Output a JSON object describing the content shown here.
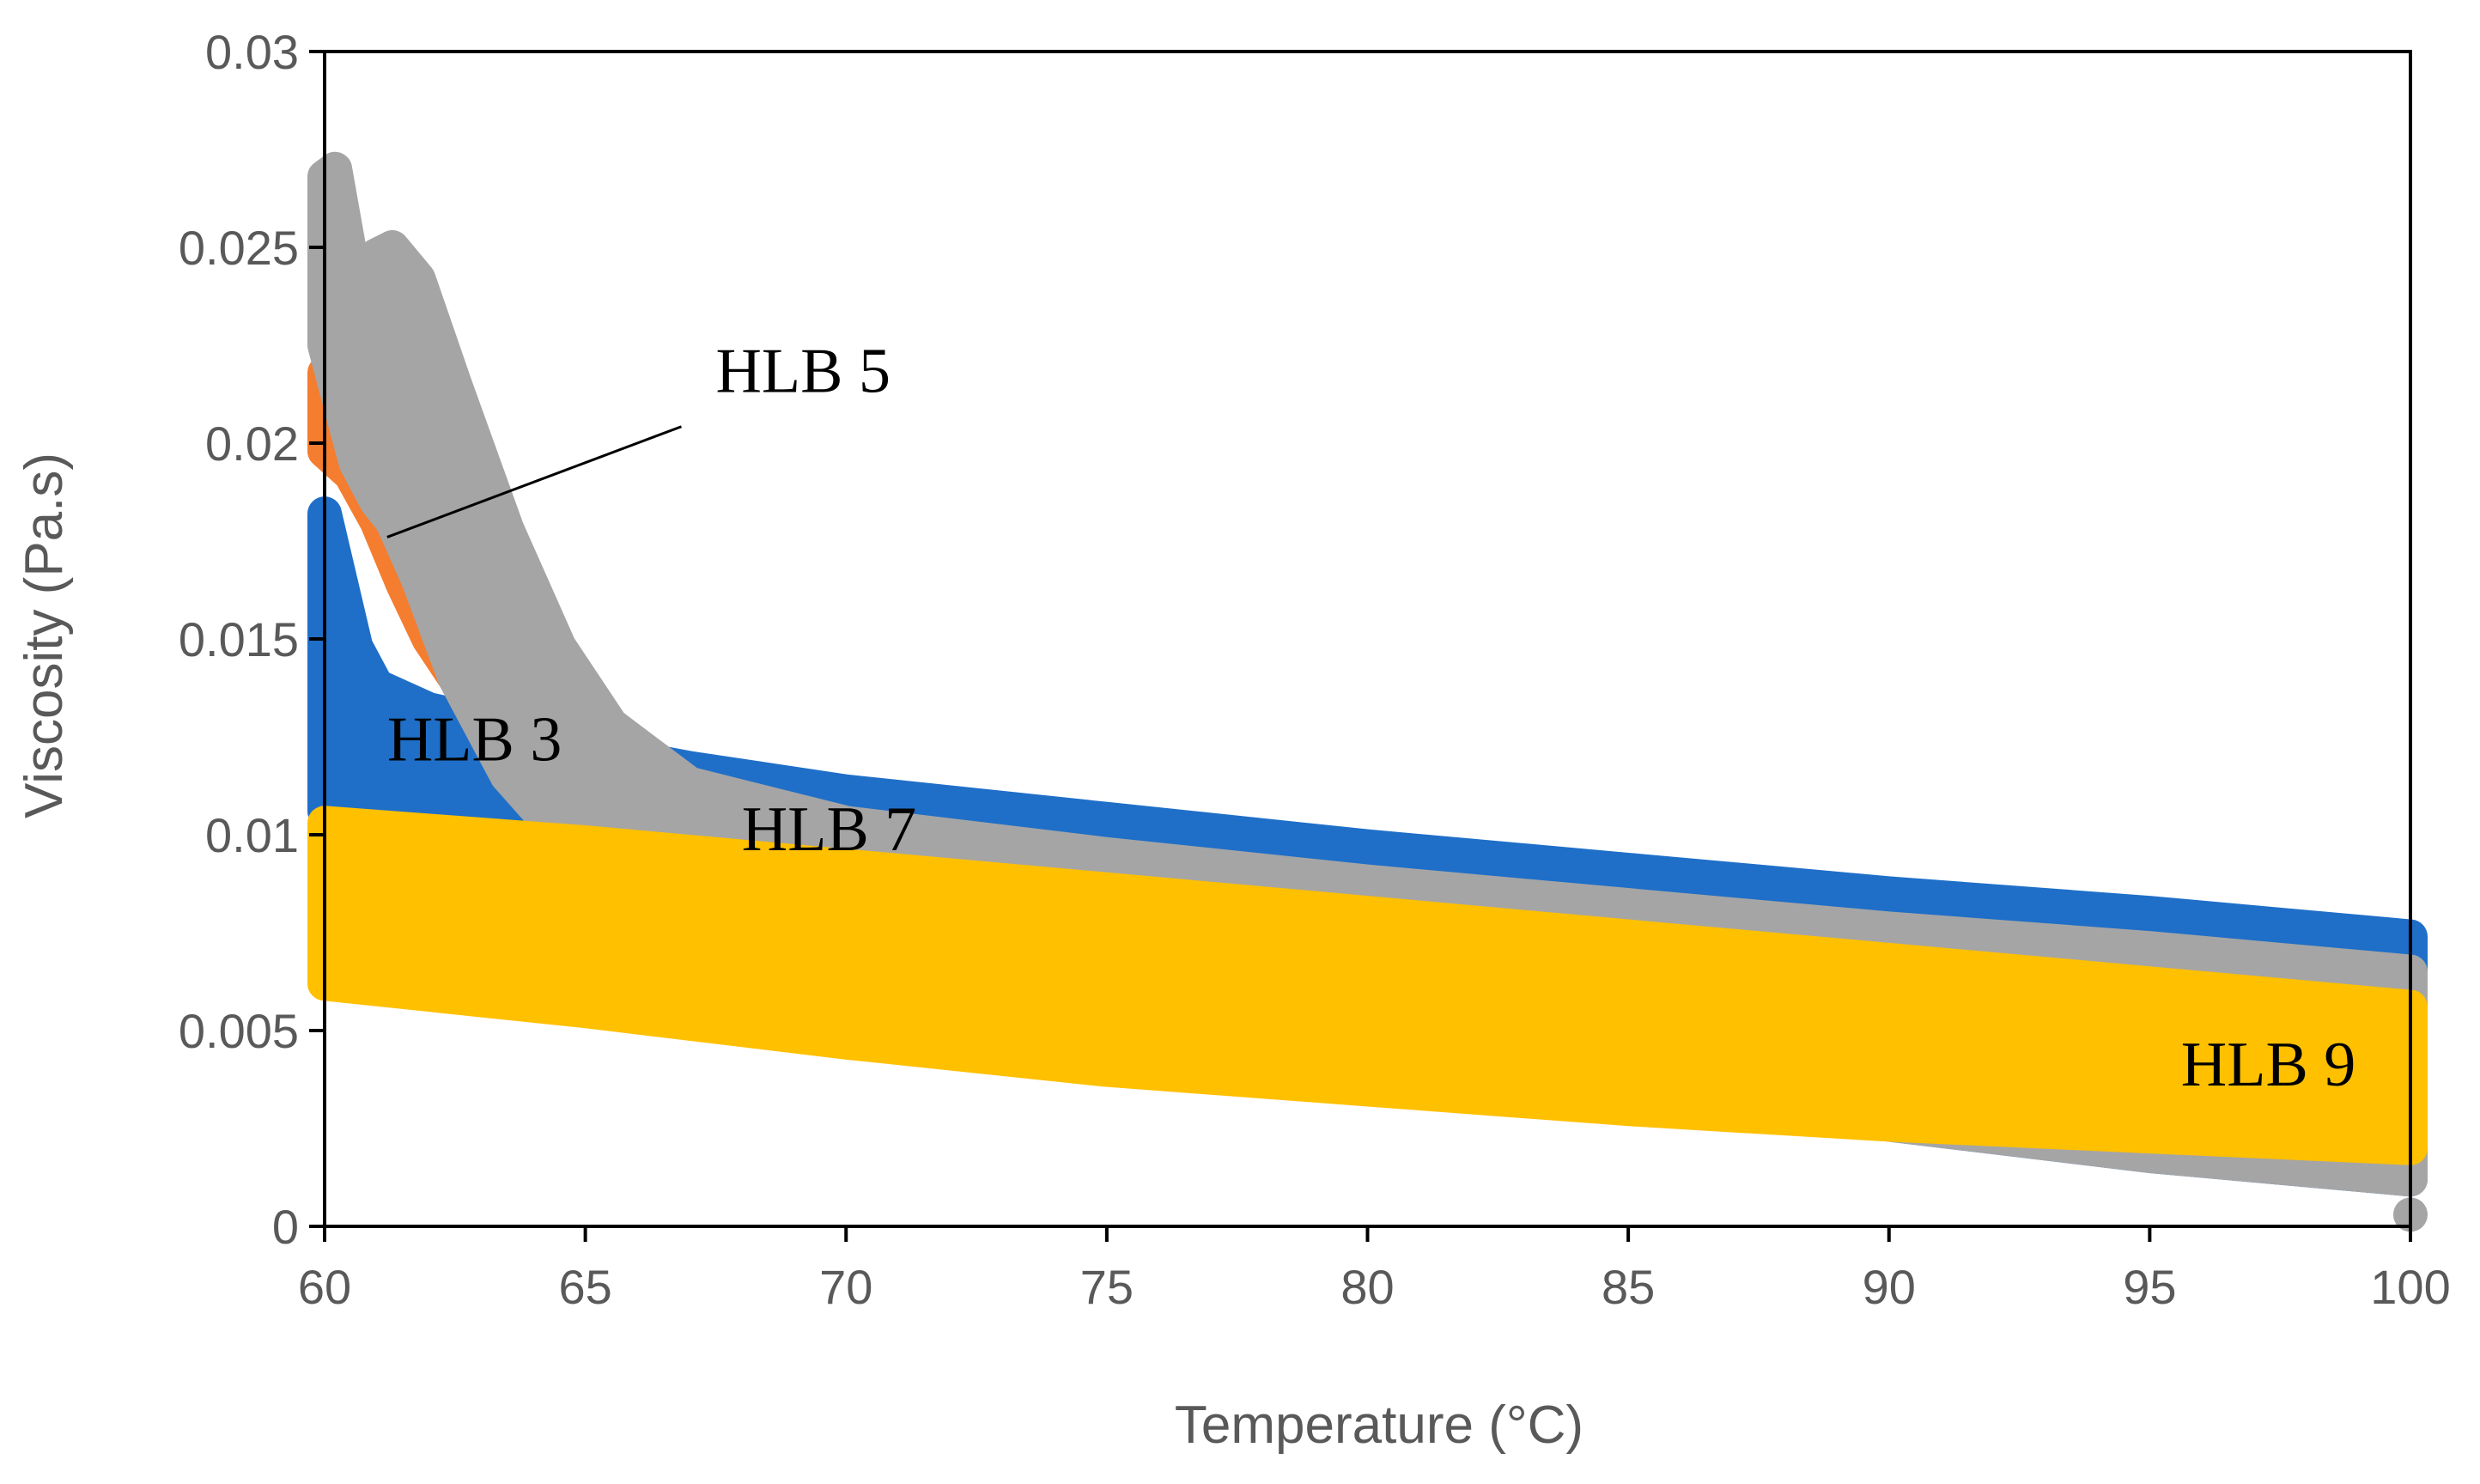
{
  "chart_data": {
    "type": "scatter",
    "xlabel": "Temperature (°C)",
    "ylabel": "Viscosity (Pa.s)",
    "xlim": [
      60,
      100
    ],
    "ylim": [
      0,
      0.03
    ],
    "x_ticks": [
      "60",
      "65",
      "70",
      "75",
      "80",
      "85",
      "90",
      "95",
      "100"
    ],
    "y_ticks": [
      "0",
      "0.005",
      "0.01",
      "0.015",
      "0.02",
      "0.025",
      "0.03"
    ],
    "grid": false,
    "legend": "none",
    "series": [
      {
        "name": "HLB 3",
        "color": "#1F6FC8",
        "x": [
          60,
          60.3,
          60.6,
          61,
          62,
          63,
          64,
          65,
          67,
          70,
          75,
          80,
          85,
          90,
          95,
          100
        ],
        "upper": [
          0.0182,
          0.0165,
          0.0148,
          0.0138,
          0.0132,
          0.0129,
          0.0125,
          0.0122,
          0.0117,
          0.0111,
          0.0104,
          0.0097,
          0.0091,
          0.0085,
          0.008,
          0.0074
        ],
        "lower": [
          0.0106,
          0.0104,
          0.0103,
          0.0102,
          0.0101,
          0.01,
          0.0098,
          0.0094,
          0.0088,
          0.0078,
          0.0062,
          0.0048,
          0.0036,
          0.0026,
          0.0018,
          0.0012
        ]
      },
      {
        "name": "HLB 5",
        "color": "#F47D30",
        "x": [
          60,
          60.5,
          61,
          61.5,
          62,
          62.5,
          63
        ],
        "upper": [
          0.0218,
          0.0212,
          0.02,
          0.0188,
          0.0172,
          0.0158,
          0.0145
        ],
        "lower": [
          0.0198,
          0.0192,
          0.018,
          0.0164,
          0.015,
          0.014,
          0.0133
        ]
      },
      {
        "name": "HLB 7",
        "color": "#A5A5A5",
        "x": [
          60,
          60.2,
          60.6,
          61,
          61.3,
          61.8,
          62.5,
          63.5,
          64.5,
          65.5,
          67,
          70,
          75,
          80,
          85,
          90,
          95,
          100
        ],
        "upper": [
          0.0268,
          0.027,
          0.024,
          0.0248,
          0.025,
          0.0242,
          0.0215,
          0.0178,
          0.0148,
          0.0128,
          0.0113,
          0.0103,
          0.0095,
          0.0088,
          0.0082,
          0.0076,
          0.0071,
          0.0065
        ],
        "lower": [
          0.0225,
          0.0215,
          0.0195,
          0.0185,
          0.018,
          0.0165,
          0.014,
          0.0115,
          0.01,
          0.0096,
          0.009,
          0.0078,
          0.0063,
          0.0048,
          0.0036,
          0.0026,
          0.0018,
          0.0012
        ]
      },
      {
        "name": "HLB 9",
        "color": "#FFC000",
        "x": [
          60,
          65,
          70,
          75,
          80,
          85,
          90,
          95,
          100
        ],
        "upper": [
          0.0103,
          0.0098,
          0.0092,
          0.0086,
          0.008,
          0.0074,
          0.0068,
          0.0062,
          0.0056
        ],
        "lower": [
          0.0062,
          0.0055,
          0.0047,
          0.004,
          0.0035,
          0.003,
          0.0026,
          0.0023,
          0.002
        ]
      }
    ],
    "annotations": [
      {
        "text": "HLB 3",
        "x": 61.2,
        "y": 0.0119
      },
      {
        "text": "HLB 5",
        "x": 67.5,
        "y": 0.0213,
        "arrow_to": [
          61.2,
          0.0176
        ]
      },
      {
        "text": "HLB 7",
        "x": 68.0,
        "y": 0.0096
      },
      {
        "text": "HLB 9",
        "x": 95.6,
        "y": 0.0036
      }
    ],
    "extra_points": [
      {
        "series": "HLB 7",
        "x": 100,
        "y": 0.0003
      }
    ]
  }
}
